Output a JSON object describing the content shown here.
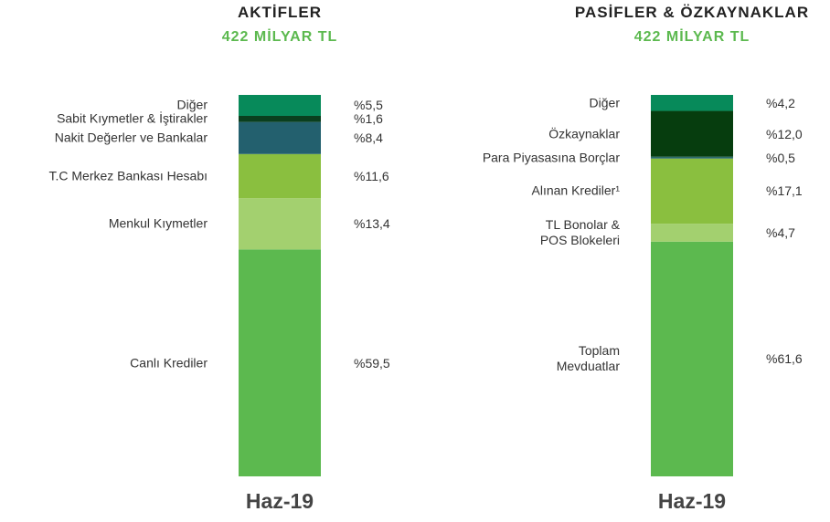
{
  "chart_data": [
    {
      "type": "stacked_bar",
      "title": "AKTİFLER",
      "subtitle": "422 MİLYAR TL",
      "categories": [
        "Haz-19"
      ],
      "series": [
        {
          "name": "Canlı Krediler",
          "color": "#5cb94f",
          "values": [
            59.5
          ],
          "value_labels": [
            "%59,5"
          ]
        },
        {
          "name": "Menkul Kıymetler",
          "color": "#a3d06f",
          "values": [
            13.4
          ],
          "value_labels": [
            "%13,4"
          ]
        },
        {
          "name": "T.C Merkez Bankası Hesabı",
          "color": "#8abf3f",
          "values": [
            11.6
          ],
          "value_labels": [
            "%11,6"
          ]
        },
        {
          "name": "Nakit Değerler ve Bankalar",
          "color": "#23606e",
          "values": [
            8.4
          ],
          "value_labels": [
            "%8,4"
          ]
        },
        {
          "name": "Sabit Kıymetler & İştirakler",
          "color": "#0a3f1e",
          "values": [
            1.6
          ],
          "value_labels": [
            "%1,6"
          ]
        },
        {
          "name": "Diğer",
          "color": "#078a5a",
          "values": [
            5.5
          ],
          "value_labels": [
            "%5,5"
          ]
        }
      ]
    },
    {
      "type": "stacked_bar",
      "title": "PASİFLER & ÖZKAYNAKLAR",
      "subtitle": "422 MİLYAR TL",
      "categories": [
        "Haz-19"
      ],
      "series": [
        {
          "name": "Toplam\nMevduatlar",
          "color": "#5cb94f",
          "values": [
            61.6
          ],
          "value_labels": [
            "%61,6"
          ]
        },
        {
          "name": "TL Bonolar &\nPOS Blokeleri",
          "color": "#a3d06f",
          "values": [
            4.7
          ],
          "value_labels": [
            "%4,7"
          ]
        },
        {
          "name": "Alınan Krediler¹",
          "color": "#8abf3f",
          "values": [
            17.1
          ],
          "value_labels": [
            "%17,1"
          ]
        },
        {
          "name": "Para Piyasasına Borçlar",
          "color": "#2a6a6a",
          "values": [
            0.5
          ],
          "value_labels": [
            "%0,5"
          ]
        },
        {
          "name": "Özkaynaklar",
          "color": "#063d0e",
          "values": [
            12.0
          ],
          "value_labels": [
            "%12,0"
          ]
        },
        {
          "name": "Diğer",
          "color": "#078a5a",
          "values": [
            4.2
          ],
          "value_labels": [
            "%4,2"
          ]
        }
      ]
    }
  ]
}
